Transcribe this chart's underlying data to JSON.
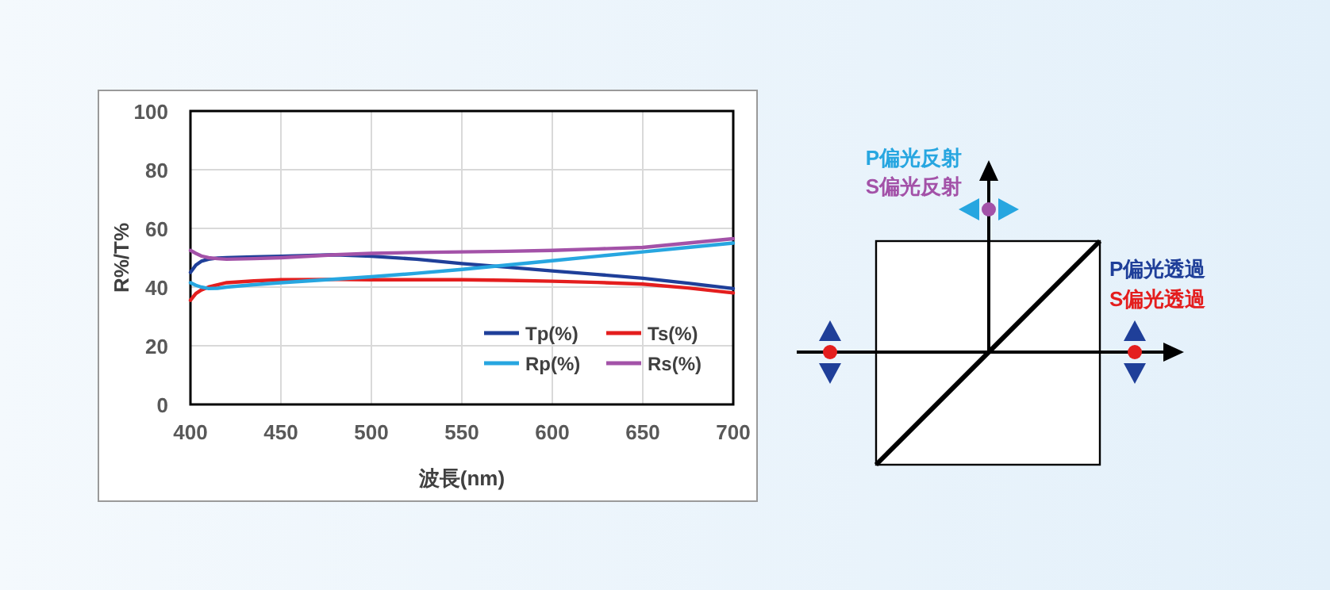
{
  "chart_data": {
    "type": "line",
    "xlabel": "波長(nm)",
    "ylabel": "R%/T%",
    "x": [
      400,
      403,
      406,
      410,
      415,
      420,
      435,
      450,
      480,
      500,
      525,
      550,
      575,
      600,
      625,
      650,
      675,
      700
    ],
    "series": [
      {
        "name": "Tp(%)",
        "color": "#1f3f99",
        "values": [
          45,
          47.5,
          48.8,
          49.5,
          49.9,
          50,
          50.3,
          50.5,
          51,
          50.5,
          49.5,
          48,
          46.8,
          45.5,
          44.3,
          43,
          41.3,
          39.5
        ]
      },
      {
        "name": "Ts(%)",
        "color": "#e41e1e",
        "values": [
          35.5,
          37.8,
          39,
          40,
          40.8,
          41.5,
          42.1,
          42.5,
          42.6,
          42.5,
          42.5,
          42.5,
          42.3,
          42,
          41.6,
          41,
          39.7,
          38
        ]
      },
      {
        "name": "Rp(%)",
        "color": "#27a6e0",
        "values": [
          41.5,
          40.6,
          40,
          39.5,
          39.6,
          40,
          40.8,
          41.5,
          42.7,
          43.5,
          44.7,
          46,
          47.5,
          49,
          50.5,
          52,
          53.5,
          55
        ]
      },
      {
        "name": "Rs(%)",
        "color": "#a352a8",
        "values": [
          52.5,
          51.5,
          50.6,
          50,
          49.7,
          49.5,
          49.7,
          50,
          51,
          51.5,
          51.8,
          52,
          52.2,
          52.5,
          53,
          53.5,
          55,
          56.5
        ]
      }
    ],
    "xlim": [
      400,
      700
    ],
    "ylim": [
      0,
      100
    ],
    "xticks": [
      400,
      450,
      500,
      550,
      600,
      650,
      700
    ],
    "yticks": [
      0,
      20,
      40,
      60,
      80,
      100
    ],
    "grid": true,
    "legend": "bottom right",
    "line_style": "solid",
    "marker": "none",
    "annotations": [
      "P偏光反射",
      "S偏光反射",
      "P偏光透過",
      "S偏光透過"
    ]
  }
}
